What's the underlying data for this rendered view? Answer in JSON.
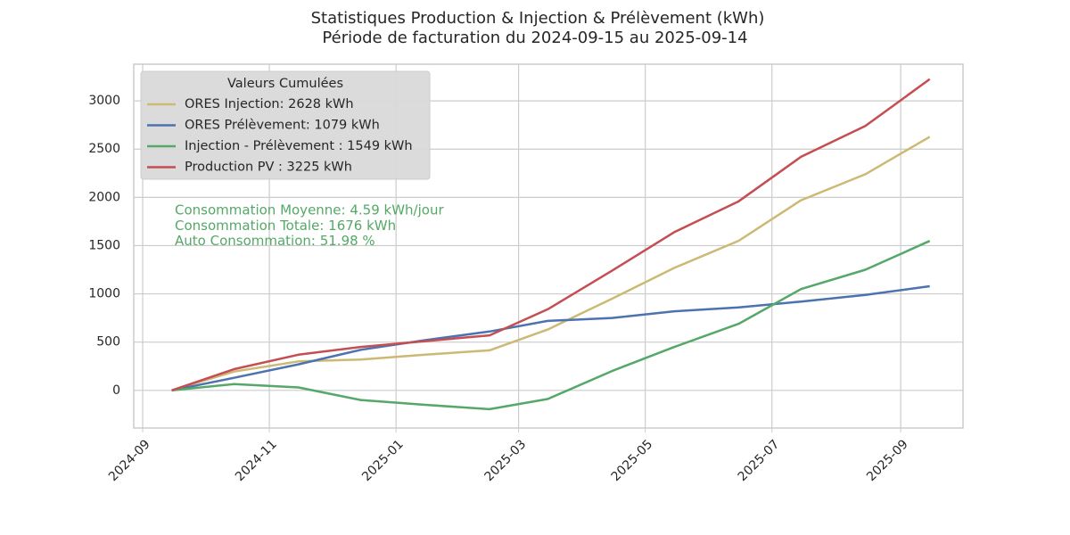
{
  "chart_data": {
    "type": "line",
    "title": "Statistiques Production & Injection & Prélèvement (kWh)",
    "subtitle": "Période de facturation du 2024-09-15 au 2025-09-14",
    "x": [
      "2024-09",
      "2024-10",
      "2024-11",
      "2024-12",
      "2025-01",
      "2025-02",
      "2025-03",
      "2025-04",
      "2025-05",
      "2025-06",
      "2025-07",
      "2025-08",
      "2025-09"
    ],
    "series": [
      {
        "name": "ORES Injection: 2628 kWh",
        "color": "#ccb974",
        "values": [
          0,
          195,
          300,
          320,
          370,
          415,
          630,
          950,
          1270,
          1550,
          1970,
          2240,
          2628
        ]
      },
      {
        "name": "ORES Prélèvement: 1079 kWh",
        "color": "#4c72b0",
        "values": [
          0,
          130,
          270,
          420,
          520,
          610,
          720,
          750,
          820,
          860,
          920,
          990,
          1079
        ]
      },
      {
        "name": "Injection - Prélèvement : 1549 kWh",
        "color": "#55a868",
        "values": [
          0,
          65,
          30,
          -100,
          -150,
          -195,
          -90,
          200,
          450,
          690,
          1050,
          1250,
          1549
        ]
      },
      {
        "name": "Production PV : 3225 kWh",
        "color": "#c44e52",
        "values": [
          0,
          220,
          370,
          450,
          510,
          570,
          840,
          1240,
          1640,
          1960,
          2420,
          2740,
          3225
        ]
      }
    ],
    "legend_title": "Valeurs Cumulées",
    "legend_position": "upper left",
    "annotations": [
      "Consommation Moyenne: 4.59 kWh/jour",
      "Consommation Totale: 1676 kWh",
      "Auto Consommation: 51.98 %"
    ],
    "annotation_color": "#55a868",
    "xlim": [
      "2024-09",
      "2025-09"
    ],
    "xticks": [
      "2024-09",
      "2024-11",
      "2025-01",
      "2025-03",
      "2025-05",
      "2025-07",
      "2025-09"
    ],
    "ylim": [
      -390,
      3380
    ],
    "yticks": [
      0,
      500,
      1000,
      1500,
      2000,
      2500,
      3000
    ],
    "grid": true
  }
}
